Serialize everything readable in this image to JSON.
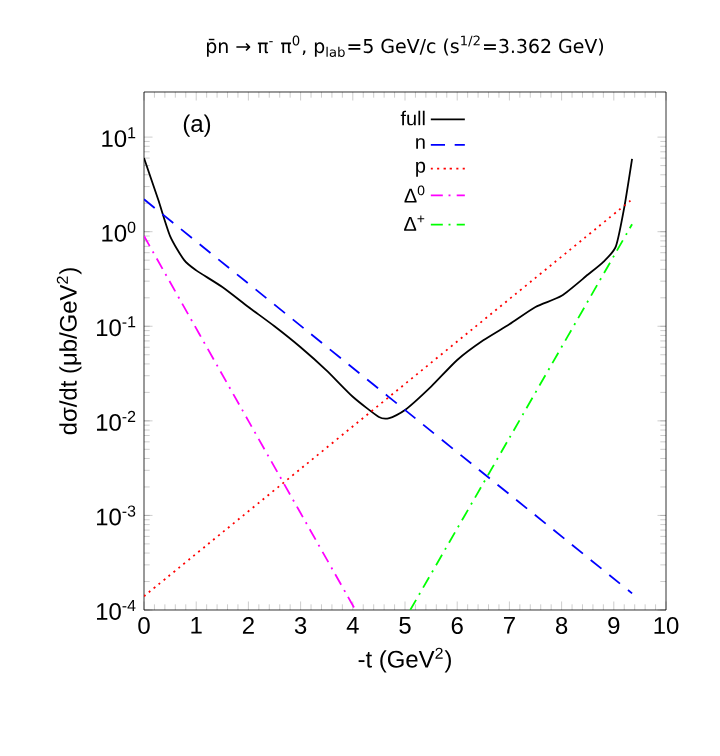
{
  "chart_data": {
    "type": "line",
    "title": "p̄n → π$^{-}$ π$^{0}$, p$_{lab}$=5 GeV/c (s$^{1/2}$=3.362 GeV)",
    "xlabel": "-t (GeV$^{2}$)",
    "ylabel": "dσ/dt (μb/GeV$^{2}$)",
    "annotations": [
      "(a)"
    ],
    "log": "y",
    "legend": "top",
    "xlim": [
      0,
      10
    ],
    "ylim": [
      0.0001,
      30
    ],
    "xticks": [
      0,
      1,
      2,
      3,
      4,
      5,
      6,
      7,
      8,
      9,
      10
    ],
    "yticks": [
      {
        "value": 0.0001,
        "label": "10$^{-4}$"
      },
      {
        "value": 0.001,
        "label": "10$^{-3}$"
      },
      {
        "value": 0.01,
        "label": "10$^{-2}$"
      },
      {
        "value": 0.1,
        "label": "10$^{-1}$"
      },
      {
        "value": 1,
        "label": "10$^{0}$"
      },
      {
        "value": 10,
        "label": "10$^{1}$"
      }
    ],
    "series": [
      {
        "name": "full",
        "color": "#000000",
        "line_style": "solid",
        "x": [
          0,
          0.27,
          0.5,
          0.77,
          1,
          1.5,
          2,
          2.5,
          3,
          3.5,
          4,
          4.5,
          4.7,
          5,
          5.5,
          6,
          6.5,
          7,
          7.5,
          8,
          8.5,
          8.8,
          9.04,
          9.2,
          9.35
        ],
        "values": [
          6,
          2.2,
          0.9,
          0.5,
          0.39,
          0.26,
          0.16,
          0.1,
          0.06,
          0.034,
          0.018,
          0.011,
          0.0107,
          0.013,
          0.023,
          0.044,
          0.071,
          0.105,
          0.16,
          0.21,
          0.35,
          0.48,
          0.7,
          1.8,
          5.9
        ]
      },
      {
        "name": "n",
        "color": "#0000ff",
        "line_style": "dashed",
        "x": [
          0,
          9.35
        ],
        "values": [
          2.2,
          0.00015
        ]
      },
      {
        "name": "p",
        "color": "#ff0000",
        "line_style": "dotted",
        "x": [
          0,
          9.35
        ],
        "values": [
          0.00014,
          2.2
        ]
      },
      {
        "name": "Δ$^{0}$",
        "color": "#ff00ff",
        "line_style": "dashdot",
        "x": [
          0,
          2,
          4.05
        ],
        "values": [
          0.9,
          0.01,
          0.0001
        ]
      },
      {
        "name": "Δ$^{+}$",
        "color": "#00ff00",
        "line_style": "dashdot",
        "x": [
          5.1,
          7,
          9.35
        ],
        "values": [
          0.0001,
          0.0066,
          1.2
        ]
      }
    ]
  }
}
